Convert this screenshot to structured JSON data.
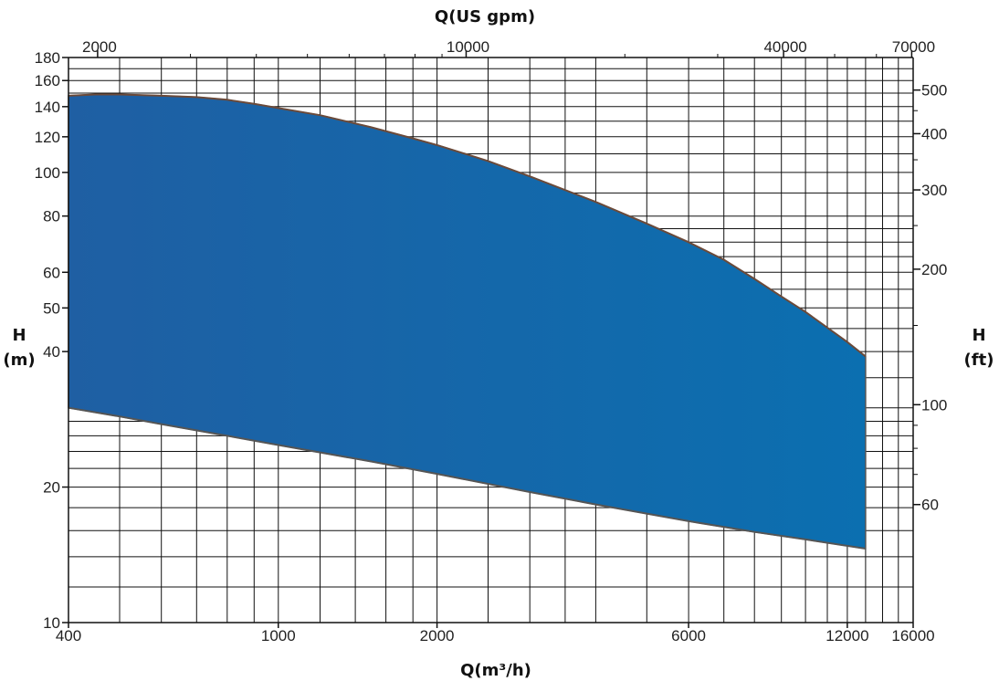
{
  "chart_data": {
    "type": "area",
    "title": "",
    "xlabel": "Q(m³/h)",
    "x2label": "Q(US gpm)",
    "ylabel_line1": "H",
    "ylabel_line2": "(m)",
    "y2label_line1": "H",
    "y2label_line2": "(ft)",
    "x_scale": "log",
    "y_scale": "log",
    "xlim": [
      400,
      16000
    ],
    "ylim": [
      10,
      180
    ],
    "grid": true,
    "fill_color": "#0b6fb0",
    "fill_color_left": "#1f5fa3",
    "edge_color": "#555555",
    "x_ticks": [
      400,
      1000,
      2000,
      6000,
      12000,
      16000
    ],
    "x_tick_labels": [
      "400",
      "1000",
      "2000",
      "6000",
      "12000",
      "16000"
    ],
    "x2_ticks": [
      2000,
      10000,
      40000,
      70000
    ],
    "x2_tick_labels": [
      "2000",
      "10000",
      "40000",
      "70000"
    ],
    "y_ticks": [
      10,
      20,
      40,
      50,
      60,
      80,
      100,
      120,
      140,
      160,
      180
    ],
    "y_tick_labels": [
      "10",
      "20",
      "40",
      "50",
      "60",
      "80",
      "100",
      "120",
      "140",
      "160",
      "180"
    ],
    "y2_ticks": [
      60,
      100,
      200,
      300,
      400,
      500
    ],
    "y2_tick_labels": [
      "60",
      "100",
      "200",
      "300",
      "400",
      "500"
    ],
    "series": [
      {
        "role": "upper_boundary",
        "x": [
          400,
          450,
          500,
          600,
          700,
          800,
          900,
          1000,
          1200,
          1500,
          1800,
          2000,
          2500,
          3000,
          4000,
          5000,
          6000,
          7000,
          8000,
          9000,
          10000,
          12000,
          13000
        ],
        "y": [
          148,
          149,
          149,
          148,
          147,
          145,
          142,
          139,
          134,
          126,
          119,
          115,
          106,
          98,
          86,
          77,
          70,
          64,
          58,
          53,
          49,
          42,
          39
        ]
      },
      {
        "role": "lower_boundary",
        "x": [
          400,
          500,
          600,
          800,
          1000,
          1500,
          2000,
          3000,
          4000,
          6000,
          8000,
          10000,
          13000
        ],
        "y": [
          30,
          28.7,
          27.6,
          26.0,
          24.8,
          22.8,
          21.4,
          19.5,
          18.3,
          16.8,
          15.9,
          15.3,
          14.6
        ]
      }
    ]
  }
}
